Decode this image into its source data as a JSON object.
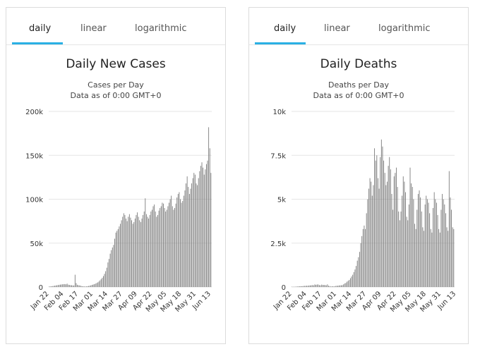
{
  "panels": [
    {
      "tabs": [
        "daily",
        "linear",
        "logarithmic"
      ],
      "active_tab": "daily",
      "title": "Daily New Cases",
      "subtitle": "Cases per Day",
      "subtitle2": "Data as of 0:00 GMT+0"
    },
    {
      "tabs": [
        "daily",
        "linear",
        "logarithmic"
      ],
      "active_tab": "daily",
      "title": "Daily Deaths",
      "subtitle": "Deaths per Day",
      "subtitle2": "Data as of 0:00 GMT+0"
    }
  ],
  "colors": {
    "accent": "#2ab0e4",
    "bar": "#7a7a7a",
    "grid": "#e6e6e6"
  },
  "chart_data": [
    {
      "type": "bar",
      "title": "Daily New Cases",
      "subtitle": "Cases per Day",
      "ylim": [
        0,
        200000
      ],
      "yticks": [
        0,
        50000,
        100000,
        150000,
        200000
      ],
      "ytick_labels": [
        "0",
        "50k",
        "100k",
        "150k",
        "200k"
      ],
      "xtick_labels": [
        "Jan 22",
        "Feb 04",
        "Feb 17",
        "Mar 01",
        "Mar 14",
        "Mar 27",
        "Apr 09",
        "Apr 22",
        "May 05",
        "May 18",
        "May 31",
        "Jun 13"
      ],
      "x_start": "2020-01-22",
      "values": [
        500,
        600,
        800,
        1000,
        1200,
        1500,
        1700,
        2000,
        2200,
        2500,
        2700,
        2900,
        3100,
        3200,
        3300,
        3000,
        3800,
        2600,
        2400,
        2100,
        2000,
        1800,
        1700,
        14000,
        4500,
        2500,
        2000,
        1800,
        1500,
        900,
        800,
        700,
        600,
        700,
        900,
        1200,
        1500,
        1900,
        2400,
        2800,
        3200,
        3800,
        4500,
        5200,
        6200,
        7500,
        9000,
        10500,
        12500,
        15000,
        18000,
        22000,
        28000,
        32000,
        38000,
        42000,
        45000,
        48000,
        55000,
        62000,
        64000,
        66000,
        69000,
        72000,
        76000,
        80000,
        84000,
        82000,
        78000,
        75000,
        80000,
        83000,
        79000,
        76000,
        72000,
        74000,
        78000,
        82000,
        85000,
        80000,
        76000,
        74000,
        78000,
        82000,
        86000,
        101000,
        83000,
        80000,
        78000,
        82000,
        86000,
        88000,
        92000,
        94000,
        86000,
        80000,
        82000,
        87000,
        90000,
        92000,
        96000,
        95000,
        90000,
        86000,
        88000,
        92000,
        96000,
        100000,
        104000,
        92000,
        88000,
        90000,
        95000,
        102000,
        106000,
        108000,
        100000,
        96000,
        98000,
        104000,
        110000,
        118000,
        126000,
        114000,
        106000,
        112000,
        118000,
        124000,
        130000,
        128000,
        118000,
        116000,
        124000,
        132000,
        138000,
        142000,
        136000,
        128000,
        134000,
        140000,
        144000,
        182000,
        158000,
        130000
      ]
    },
    {
      "type": "bar",
      "title": "Daily Deaths",
      "subtitle": "Deaths per Day",
      "ylim": [
        0,
        10000
      ],
      "yticks": [
        0,
        2500,
        5000,
        7500,
        10000
      ],
      "ytick_labels": [
        "0",
        "2.5k",
        "5k",
        "7.5k",
        "10k"
      ],
      "xtick_labels": [
        "Jan 22",
        "Feb 04",
        "Feb 17",
        "Mar 01",
        "Mar 14",
        "Mar 27",
        "Apr 09",
        "Apr 22",
        "May 05",
        "May 18",
        "May 31",
        "Jun 13"
      ],
      "x_start": "2020-01-22",
      "values": [
        17,
        8,
        16,
        14,
        26,
        26,
        38,
        43,
        46,
        45,
        57,
        64,
        66,
        73,
        73,
        86,
        89,
        97,
        108,
        97,
        146,
        121,
        143,
        142,
        105,
        98,
        136,
        115,
        118,
        109,
        97,
        150,
        71,
        52,
        29,
        44,
        37,
        35,
        58,
        67,
        72,
        84,
        94,
        98,
        104,
        150,
        200,
        230,
        300,
        350,
        400,
        500,
        600,
        700,
        850,
        1000,
        1200,
        1500,
        1700,
        2000,
        2500,
        2900,
        3300,
        3500,
        3300,
        4200,
        5000,
        5600,
        6200,
        6000,
        5200,
        5800,
        7900,
        7200,
        7500,
        6200,
        5600,
        7400,
        8400,
        8000,
        7200,
        6500,
        5800,
        6000,
        6900,
        7400,
        6700,
        5300,
        4400,
        6300,
        6500,
        6800,
        5700,
        4300,
        3800,
        4300,
        5200,
        6300,
        6000,
        5400,
        4000,
        3800,
        4700,
        6800,
        5900,
        5700,
        5000,
        3600,
        3300,
        4400,
        5300,
        5500,
        5100,
        4300,
        3400,
        3200,
        4700,
        5200,
        5000,
        4800,
        4200,
        3300,
        3100,
        4500,
        5400,
        5000,
        4800,
        4100,
        3300,
        3100,
        4400,
        5300,
        5000,
        4700,
        4200,
        3400,
        3200,
        6600,
        5100,
        4400,
        3400,
        3300
      ]
    }
  ]
}
